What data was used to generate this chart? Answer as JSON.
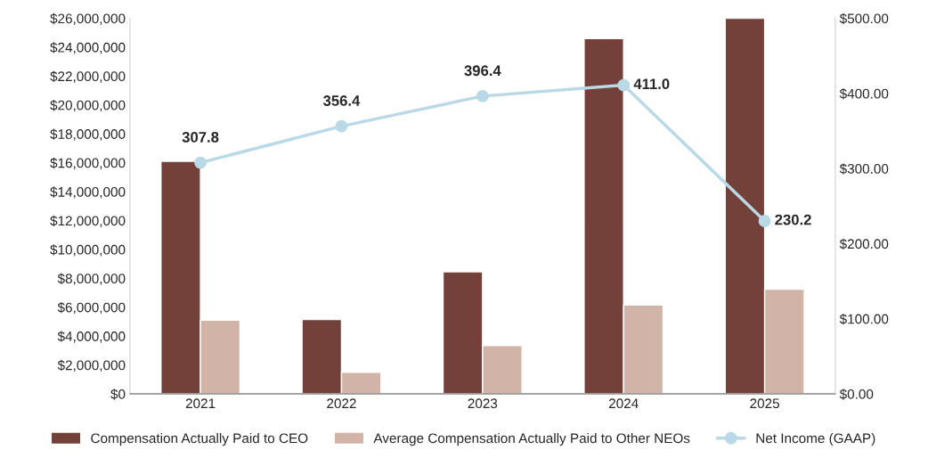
{
  "chart_data": {
    "type": "bar",
    "categories": [
      "2021",
      "2022",
      "2023",
      "2024",
      "2025"
    ],
    "series": [
      {
        "name": "Compensation Actually Paid to CEO",
        "color": "#73403a",
        "values": [
          16100000,
          5150000,
          8450000,
          24600000,
          26000000
        ]
      },
      {
        "name": "Average Compensation Actually Paid to Other NEOs",
        "color": "#d1b3a8",
        "values": [
          5100000,
          1500000,
          3350000,
          6150000,
          7250000
        ]
      },
      {
        "name": "Net Income (GAAP)",
        "type": "line",
        "axis": "y2",
        "color": "#b9d9e6",
        "marker": "circle",
        "values": [
          307.8,
          356.4,
          396.4,
          411.0,
          230.2
        ],
        "value_labels": [
          "307.8",
          "356.4",
          "396.4",
          "411.0",
          "230.2"
        ]
      }
    ],
    "ylim": [
      0,
      26000000
    ],
    "yticks": [
      {
        "value": 0,
        "label": "$0"
      },
      {
        "value": 2000000,
        "label": "$2,000,000"
      },
      {
        "value": 4000000,
        "label": "$4,000,000"
      },
      {
        "value": 6000000,
        "label": "$6,000,000"
      },
      {
        "value": 8000000,
        "label": "$8,000,000"
      },
      {
        "value": 10000000,
        "label": "$10,000,000"
      },
      {
        "value": 12000000,
        "label": "$12,000,000"
      },
      {
        "value": 14000000,
        "label": "$14,000,000"
      },
      {
        "value": 16000000,
        "label": "$16,000,000"
      },
      {
        "value": 18000000,
        "label": "$18,000,000"
      },
      {
        "value": 20000000,
        "label": "$20,000,000"
      },
      {
        "value": 22000000,
        "label": "$22,000,000"
      },
      {
        "value": 24000000,
        "label": "$24,000,000"
      },
      {
        "value": 26000000,
        "label": "$26,000,000"
      }
    ],
    "y2lim": [
      0,
      500
    ],
    "y2ticks": [
      {
        "value": 0,
        "label": "$0.00"
      },
      {
        "value": 100,
        "label": "$100.00"
      },
      {
        "value": 200,
        "label": "$200.00"
      },
      {
        "value": 300,
        "label": "$300.00"
      },
      {
        "value": 400,
        "label": "$400.00"
      },
      {
        "value": 500,
        "label": "$500.00"
      }
    ],
    "grid": false,
    "legend": "bottom"
  }
}
